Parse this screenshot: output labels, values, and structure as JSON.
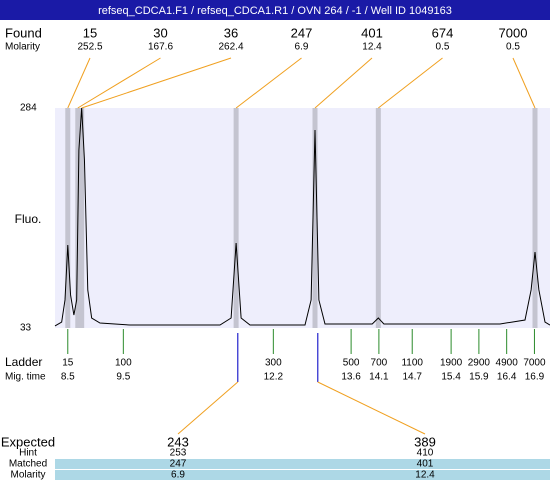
{
  "chart_data": {
    "type": "electropherogram",
    "title": "refseq_CDCA1.F1 / refseq_CDCA1.R1 / OVN 264 / -1 / Well ID 1049163",
    "y_label": "Fluo.",
    "xlim": [
      8.27,
      17.18
    ],
    "ylim": [
      33,
      284
    ],
    "yticks": [
      33,
      284
    ],
    "found": {
      "label": "Found",
      "molarity_label": "Molarity",
      "sizes": [
        15,
        30,
        36,
        247,
        401,
        674,
        7000
      ],
      "molarity": [
        252.5,
        167.6,
        262.4,
        6.9,
        12.4,
        0.5,
        0.5
      ],
      "mig_time": [
        8.5,
        8.68,
        8.75,
        11.53,
        12.95,
        14.09,
        16.91
      ]
    },
    "ladder": {
      "label": "Ladder",
      "time_label": "Mig. time",
      "sizes": [
        15,
        100,
        300,
        500,
        700,
        1100,
        1900,
        2900,
        4900,
        7000
      ],
      "mig_time": [
        8.5,
        9.5,
        12.2,
        13.6,
        14.1,
        14.7,
        15.4,
        15.9,
        16.4,
        16.9
      ]
    },
    "expected": {
      "label": "Expected",
      "hint_label": "Hint",
      "matched_label": "Matched",
      "molarity_label": "Molarity",
      "sizes": [
        243,
        389
      ],
      "hint": [
        253,
        410
      ],
      "matched": [
        247,
        401
      ],
      "molarity": [
        6.9,
        12.4
      ],
      "mig_time": [
        11.56,
        13.0
      ]
    },
    "trace": {
      "x": [
        8.27,
        8.39,
        8.45,
        8.5,
        8.55,
        8.61,
        8.66,
        8.7,
        8.75,
        8.8,
        8.86,
        8.93,
        9.08,
        9.62,
        11.24,
        11.44,
        11.53,
        11.62,
        11.78,
        12.77,
        12.88,
        12.95,
        13.02,
        13.13,
        13.98,
        14.09,
        14.19,
        16.28,
        16.73,
        16.84,
        16.91,
        16.98,
        17.09,
        17.18
      ],
      "values": [
        35.3,
        39.8,
        65,
        127.7,
        70.7,
        47.8,
        65,
        236,
        284,
        224.7,
        76.4,
        44.4,
        38.7,
        36.4,
        36.4,
        44.4,
        130,
        44.4,
        36.4,
        36.4,
        65,
        258.9,
        65,
        37.6,
        37.6,
        44.4,
        37.6,
        37.6,
        42.1,
        76.4,
        119.7,
        76.4,
        39.8,
        36.4
      ]
    }
  }
}
